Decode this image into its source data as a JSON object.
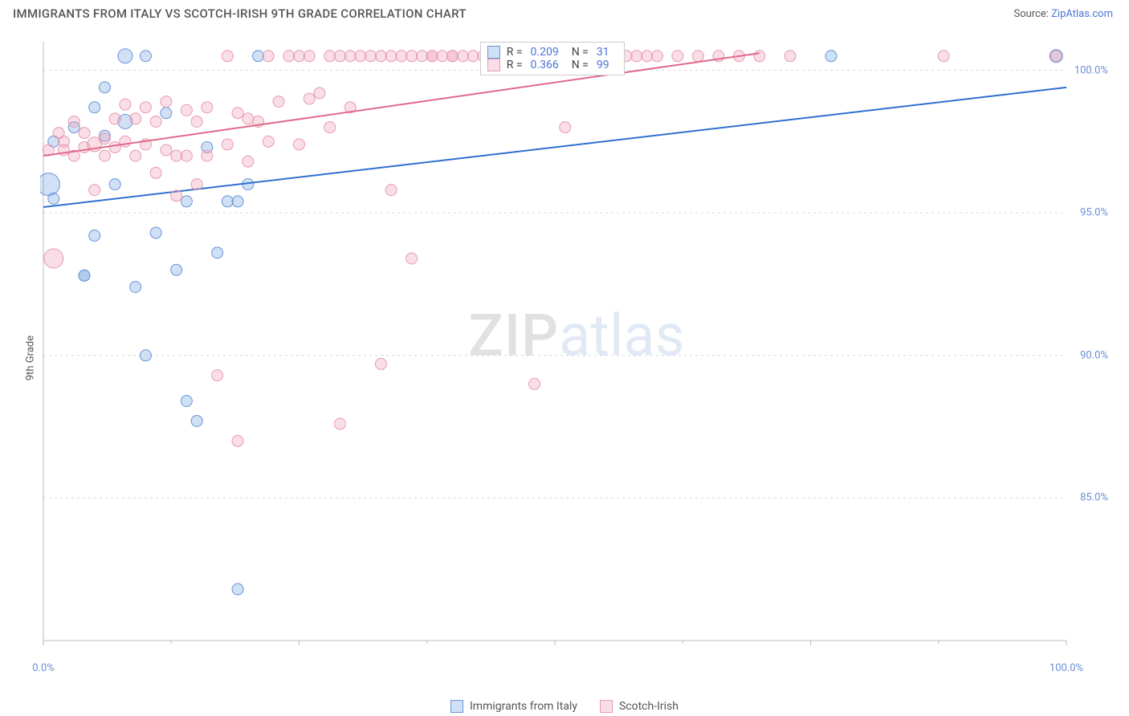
{
  "header": {
    "title": "IMMIGRANTS FROM ITALY VS SCOTCH-IRISH 9TH GRADE CORRELATION CHART",
    "source_prefix": "Source: ",
    "source_link": "ZipAtlas.com"
  },
  "chart": {
    "type": "scatter",
    "ylabel": "9th Grade",
    "background_color": "#ffffff",
    "axis_color": "#bdbdbd",
    "grid_color": "#d9d9d9",
    "grid_dash": "3,4",
    "xlim": [
      0,
      100
    ],
    "ylim": [
      80,
      101
    ],
    "xticks": [
      {
        "v": 0,
        "label": "0.0%"
      },
      {
        "v": 25,
        "label": ""
      },
      {
        "v": 50,
        "label": ""
      },
      {
        "v": 75,
        "label": ""
      },
      {
        "v": 100,
        "label": "100.0%"
      }
    ],
    "xtick_minor": [
      12.5,
      37.5,
      62.5,
      87.5
    ],
    "yticks": [
      {
        "v": 85,
        "label": "85.0%"
      },
      {
        "v": 90,
        "label": "90.0%"
      },
      {
        "v": 95,
        "label": "95.0%"
      },
      {
        "v": 100,
        "label": "100.0%"
      }
    ],
    "watermark": {
      "a": "ZIP",
      "b": "atlas"
    },
    "series": [
      {
        "name": "Immigrants from Italy",
        "fill": "rgba(120,165,225,0.35)",
        "stroke": "#6a95d8",
        "line_color": "#2f6fd0",
        "line_width": 2,
        "R": "0.209",
        "N": "31",
        "trend": {
          "x1": 0,
          "y1": 95.2,
          "x2": 100,
          "y2": 99.4
        },
        "points": [
          {
            "x": 0.5,
            "y": 96.0,
            "r": 14
          },
          {
            "x": 1,
            "y": 97.5,
            "r": 7
          },
          {
            "x": 1,
            "y": 95.5,
            "r": 7
          },
          {
            "x": 3,
            "y": 98.0,
            "r": 7
          },
          {
            "x": 4,
            "y": 92.8,
            "r": 7
          },
          {
            "x": 4,
            "y": 92.8,
            "r": 7
          },
          {
            "x": 5,
            "y": 98.7,
            "r": 7
          },
          {
            "x": 5,
            "y": 94.2,
            "r": 7
          },
          {
            "x": 6,
            "y": 99.4,
            "r": 7
          },
          {
            "x": 6,
            "y": 97.7,
            "r": 7
          },
          {
            "x": 7,
            "y": 96.0,
            "r": 7
          },
          {
            "x": 8,
            "y": 98.2,
            "r": 9
          },
          {
            "x": 8,
            "y": 100.5,
            "r": 9
          },
          {
            "x": 9,
            "y": 92.4,
            "r": 7
          },
          {
            "x": 10,
            "y": 100.5,
            "r": 7
          },
          {
            "x": 10,
            "y": 90.0,
            "r": 7
          },
          {
            "x": 11,
            "y": 94.3,
            "r": 7
          },
          {
            "x": 12,
            "y": 98.5,
            "r": 7
          },
          {
            "x": 13,
            "y": 93.0,
            "r": 7
          },
          {
            "x": 14,
            "y": 95.4,
            "r": 7
          },
          {
            "x": 14,
            "y": 88.4,
            "r": 7
          },
          {
            "x": 15,
            "y": 87.7,
            "r": 7
          },
          {
            "x": 16,
            "y": 97.3,
            "r": 7
          },
          {
            "x": 17,
            "y": 93.6,
            "r": 7
          },
          {
            "x": 18,
            "y": 95.4,
            "r": 7
          },
          {
            "x": 19,
            "y": 81.8,
            "r": 7
          },
          {
            "x": 19,
            "y": 95.4,
            "r": 7
          },
          {
            "x": 20,
            "y": 96.0,
            "r": 7
          },
          {
            "x": 21,
            "y": 100.5,
            "r": 7
          },
          {
            "x": 77,
            "y": 100.5,
            "r": 7
          },
          {
            "x": 99,
            "y": 100.5,
            "r": 8
          }
        ]
      },
      {
        "name": "Scotch-Irish",
        "fill": "rgba(240,160,185,0.35)",
        "stroke": "#e79ab0",
        "line_color": "#e06a8a",
        "line_width": 2,
        "R": "0.366",
        "N": "99",
        "trend": {
          "x1": 0,
          "y1": 97.0,
          "x2": 70,
          "y2": 100.6
        },
        "points": [
          {
            "x": 0.5,
            "y": 97.2,
            "r": 7
          },
          {
            "x": 1,
            "y": 93.4,
            "r": 12
          },
          {
            "x": 1.5,
            "y": 97.8,
            "r": 7
          },
          {
            "x": 2,
            "y": 97.5,
            "r": 7
          },
          {
            "x": 2,
            "y": 97.2,
            "r": 7
          },
          {
            "x": 3,
            "y": 97.0,
            "r": 7
          },
          {
            "x": 3,
            "y": 98.2,
            "r": 7
          },
          {
            "x": 4,
            "y": 97.3,
            "r": 7
          },
          {
            "x": 4,
            "y": 97.8,
            "r": 7
          },
          {
            "x": 5,
            "y": 97.4,
            "r": 9
          },
          {
            "x": 5,
            "y": 95.8,
            "r": 7
          },
          {
            "x": 6,
            "y": 97.6,
            "r": 7
          },
          {
            "x": 6,
            "y": 97.0,
            "r": 7
          },
          {
            "x": 7,
            "y": 98.3,
            "r": 7
          },
          {
            "x": 7,
            "y": 97.3,
            "r": 7
          },
          {
            "x": 8,
            "y": 98.8,
            "r": 7
          },
          {
            "x": 8,
            "y": 97.5,
            "r": 7
          },
          {
            "x": 9,
            "y": 98.3,
            "r": 7
          },
          {
            "x": 9,
            "y": 97.0,
            "r": 7
          },
          {
            "x": 10,
            "y": 97.4,
            "r": 7
          },
          {
            "x": 10,
            "y": 98.7,
            "r": 7
          },
          {
            "x": 11,
            "y": 96.4,
            "r": 7
          },
          {
            "x": 11,
            "y": 98.2,
            "r": 7
          },
          {
            "x": 12,
            "y": 98.9,
            "r": 7
          },
          {
            "x": 12,
            "y": 97.2,
            "r": 7
          },
          {
            "x": 13,
            "y": 97.0,
            "r": 7
          },
          {
            "x": 13,
            "y": 95.6,
            "r": 7
          },
          {
            "x": 14,
            "y": 98.6,
            "r": 7
          },
          {
            "x": 14,
            "y": 97.0,
            "r": 7
          },
          {
            "x": 15,
            "y": 98.2,
            "r": 7
          },
          {
            "x": 15,
            "y": 96.0,
            "r": 7
          },
          {
            "x": 16,
            "y": 97.0,
            "r": 7
          },
          {
            "x": 16,
            "y": 98.7,
            "r": 7
          },
          {
            "x": 17,
            "y": 89.3,
            "r": 7
          },
          {
            "x": 18,
            "y": 97.4,
            "r": 7
          },
          {
            "x": 18,
            "y": 100.5,
            "r": 7
          },
          {
            "x": 19,
            "y": 87.0,
            "r": 7
          },
          {
            "x": 19,
            "y": 98.5,
            "r": 7
          },
          {
            "x": 20,
            "y": 98.3,
            "r": 7
          },
          {
            "x": 20,
            "y": 96.8,
            "r": 7
          },
          {
            "x": 21,
            "y": 98.2,
            "r": 7
          },
          {
            "x": 22,
            "y": 97.5,
            "r": 7
          },
          {
            "x": 22,
            "y": 100.5,
            "r": 7
          },
          {
            "x": 23,
            "y": 98.9,
            "r": 7
          },
          {
            "x": 24,
            "y": 100.5,
            "r": 7
          },
          {
            "x": 25,
            "y": 97.4,
            "r": 7
          },
          {
            "x": 25,
            "y": 100.5,
            "r": 7
          },
          {
            "x": 26,
            "y": 99.0,
            "r": 7
          },
          {
            "x": 26,
            "y": 100.5,
            "r": 7
          },
          {
            "x": 27,
            "y": 99.2,
            "r": 7
          },
          {
            "x": 28,
            "y": 100.5,
            "r": 7
          },
          {
            "x": 28,
            "y": 98.0,
            "r": 7
          },
          {
            "x": 29,
            "y": 87.6,
            "r": 7
          },
          {
            "x": 29,
            "y": 100.5,
            "r": 7
          },
          {
            "x": 30,
            "y": 100.5,
            "r": 7
          },
          {
            "x": 30,
            "y": 98.7,
            "r": 7
          },
          {
            "x": 31,
            "y": 100.5,
            "r": 7
          },
          {
            "x": 32,
            "y": 100.5,
            "r": 7
          },
          {
            "x": 33,
            "y": 89.7,
            "r": 7
          },
          {
            "x": 33,
            "y": 100.5,
            "r": 7
          },
          {
            "x": 34,
            "y": 100.5,
            "r": 7
          },
          {
            "x": 34,
            "y": 95.8,
            "r": 7
          },
          {
            "x": 35,
            "y": 100.5,
            "r": 7
          },
          {
            "x": 36,
            "y": 100.5,
            "r": 7
          },
          {
            "x": 36,
            "y": 93.4,
            "r": 7
          },
          {
            "x": 37,
            "y": 100.5,
            "r": 7
          },
          {
            "x": 38,
            "y": 100.5,
            "r": 7
          },
          {
            "x": 38,
            "y": 100.5,
            "r": 7
          },
          {
            "x": 39,
            "y": 100.5,
            "r": 7
          },
          {
            "x": 40,
            "y": 100.5,
            "r": 7
          },
          {
            "x": 40,
            "y": 100.5,
            "r": 7
          },
          {
            "x": 41,
            "y": 100.5,
            "r": 7
          },
          {
            "x": 42,
            "y": 100.5,
            "r": 7
          },
          {
            "x": 43,
            "y": 100.5,
            "r": 7
          },
          {
            "x": 44,
            "y": 100.5,
            "r": 7
          },
          {
            "x": 45,
            "y": 100.5,
            "r": 7
          },
          {
            "x": 46,
            "y": 100.5,
            "r": 7
          },
          {
            "x": 47,
            "y": 100.5,
            "r": 7
          },
          {
            "x": 48,
            "y": 89.0,
            "r": 7
          },
          {
            "x": 48,
            "y": 100.5,
            "r": 7
          },
          {
            "x": 50,
            "y": 100.5,
            "r": 7
          },
          {
            "x": 51,
            "y": 98.0,
            "r": 7
          },
          {
            "x": 52,
            "y": 100.5,
            "r": 7
          },
          {
            "x": 53,
            "y": 100.5,
            "r": 7
          },
          {
            "x": 54,
            "y": 100.5,
            "r": 7
          },
          {
            "x": 55,
            "y": 100.5,
            "r": 7
          },
          {
            "x": 56,
            "y": 100.5,
            "r": 7
          },
          {
            "x": 57,
            "y": 100.5,
            "r": 7
          },
          {
            "x": 58,
            "y": 100.5,
            "r": 7
          },
          {
            "x": 59,
            "y": 100.5,
            "r": 7
          },
          {
            "x": 60,
            "y": 100.5,
            "r": 7
          },
          {
            "x": 62,
            "y": 100.5,
            "r": 7
          },
          {
            "x": 64,
            "y": 100.5,
            "r": 7
          },
          {
            "x": 66,
            "y": 100.5,
            "r": 7
          },
          {
            "x": 68,
            "y": 100.5,
            "r": 7
          },
          {
            "x": 70,
            "y": 100.5,
            "r": 7
          },
          {
            "x": 73,
            "y": 100.5,
            "r": 7
          },
          {
            "x": 88,
            "y": 100.5,
            "r": 7
          },
          {
            "x": 99,
            "y": 100.5,
            "r": 7
          }
        ]
      }
    ]
  },
  "legend": {
    "bottom": [
      {
        "label": "Immigrants from Italy",
        "fill": "rgba(120,165,225,0.35)",
        "stroke": "#6a95d8"
      },
      {
        "label": "Scotch-Irish",
        "fill": "rgba(240,160,185,0.35)",
        "stroke": "#e79ab0"
      }
    ]
  }
}
